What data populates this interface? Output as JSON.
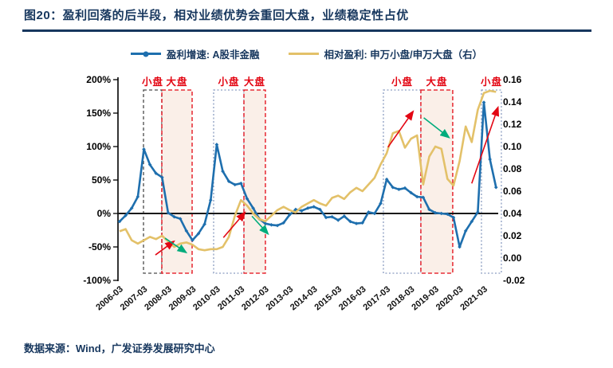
{
  "title": "图20：盈利回落的后半段，相对业绩优势会重回大盘，业绩稳定性占优",
  "source": "数据来源：Wind，广发证券发展研究中心",
  "colors": {
    "navy_text": "#17375E",
    "blue_line": "#1E6FAE",
    "yellow_line": "#E3C169",
    "red_annotation": "#E30613",
    "green_annotation": "#00AC7C",
    "region_fill": "#F6E2D6",
    "dark_box": "#4A4A4A",
    "blue_box": "#8A9CC0",
    "zero_line": "#1A1A1A"
  },
  "legend": [
    {
      "label": "盈利增速: A股非金融",
      "color": "#1E6FAE",
      "marker": true
    },
    {
      "label": "相对盈利: 申万小盘/申万大盘（右）",
      "color": "#E3C169",
      "marker": false
    }
  ],
  "chart_data": {
    "type": "line",
    "x_frequency": "quarterly",
    "x_tick_labels": [
      "2006-03",
      "2007-03",
      "2008-03",
      "2009-03",
      "2010-03",
      "2011-03",
      "2012-03",
      "2013-03",
      "2014-03",
      "2015-03",
      "2016-03",
      "2017-03",
      "2018-03",
      "2019-03",
      "2020-03",
      "2021-03"
    ],
    "left_axis": {
      "ticks": [
        "200%",
        "150%",
        "100%",
        "50%",
        "0%",
        "-50%",
        "-100%"
      ],
      "min": -100,
      "max": 200
    },
    "right_axis": {
      "ticks": [
        "0.16",
        "0.14",
        "0.12",
        "0.10",
        "0.08",
        "0.06",
        "0.04",
        "0.02",
        "0.00",
        "-0.02"
      ],
      "min": -0.02,
      "max": 0.16
    },
    "series": [
      {
        "name": "盈利增速: A股非金融",
        "axis": "left",
        "unit": "%",
        "color": "#1E6FAE",
        "values": [
          -12,
          -3,
          8,
          25,
          96,
          73,
          60,
          54,
          1,
          -5,
          -8,
          -26,
          -40,
          -30,
          -16,
          20,
          103,
          63,
          48,
          43,
          45,
          22,
          8,
          -8,
          -15,
          -17,
          -18,
          -14,
          -2,
          6,
          4,
          8,
          10,
          6,
          -6,
          -5,
          -10,
          -4,
          -12,
          -15,
          -14,
          2,
          0,
          15,
          51,
          39,
          36,
          38,
          31,
          25,
          24,
          6,
          1,
          0,
          -1,
          -6,
          -50,
          -26,
          -12,
          2,
          166,
          81,
          39
        ]
      },
      {
        "name": "相对盈利: 申万小盘/申万大盘（右）",
        "axis": "right",
        "unit": "",
        "color": "#E3C169",
        "values": [
          0.024,
          0.026,
          0.016,
          0.013,
          0.016,
          0.019,
          0.017,
          0.02,
          0.015,
          0.01,
          0.013,
          0.014,
          0.012,
          0.008,
          0.007,
          0.008,
          0.008,
          0.01,
          0.019,
          0.038,
          0.052,
          0.047,
          0.04,
          0.035,
          0.033,
          0.038,
          0.043,
          0.046,
          0.043,
          0.041,
          0.046,
          0.049,
          0.052,
          0.049,
          0.047,
          0.054,
          0.056,
          0.053,
          0.059,
          0.063,
          0.06,
          0.066,
          0.072,
          0.084,
          0.094,
          0.112,
          0.114,
          0.099,
          0.107,
          0.11,
          0.066,
          0.091,
          0.1,
          0.098,
          0.071,
          0.065,
          0.087,
          0.118,
          0.104,
          0.133,
          0.148,
          0.15,
          0.149
        ]
      }
    ],
    "regions": [
      {
        "label": "小盘",
        "style": "dark-dashed",
        "shaded": false,
        "start": 3.94,
        "end": 6.96
      },
      {
        "label": "大盘",
        "style": "red-dashed",
        "shaded": true,
        "start": 6.96,
        "end": 11.95
      },
      {
        "label": "小盘",
        "style": "blue-dotted",
        "shaded": false,
        "start": 15.49,
        "end": 20.48
      },
      {
        "label": "大盘",
        "style": "red-dashed",
        "shaded": true,
        "start": 20.48,
        "end": 24.02
      },
      {
        "label": "小盘",
        "style": "blue-dotted",
        "shaded": false,
        "start": 43.45,
        "end": 49.62
      },
      {
        "label": "大盘",
        "style": "red-dashed",
        "shaded": true,
        "start": 49.62,
        "end": 54.87
      },
      {
        "label": "小盘",
        "style": "blue-dotted",
        "shaded": false,
        "start": 59.6,
        "end": 62.88
      }
    ],
    "arrows": [
      {
        "color": "red",
        "from": [
          5.9,
          -62
        ],
        "to": [
          8.9,
          -42
        ]
      },
      {
        "color": "green",
        "from": [
          7.5,
          -37
        ],
        "to": [
          10.9,
          -58
        ]
      },
      {
        "color": "red",
        "from": [
          17.1,
          -36
        ],
        "to": [
          20.6,
          1
        ]
      },
      {
        "color": "green",
        "from": [
          21.8,
          -4
        ],
        "to": [
          24.4,
          -30
        ]
      },
      {
        "color": "red",
        "from": [
          44.2,
          99
        ],
        "to": [
          48.3,
          152
        ]
      },
      {
        "color": "green",
        "from": [
          50.1,
          143
        ],
        "to": [
          54.2,
          114
        ]
      },
      {
        "color": "red",
        "from": [
          58.0,
          45
        ],
        "to": [
          62.3,
          158
        ]
      }
    ]
  }
}
